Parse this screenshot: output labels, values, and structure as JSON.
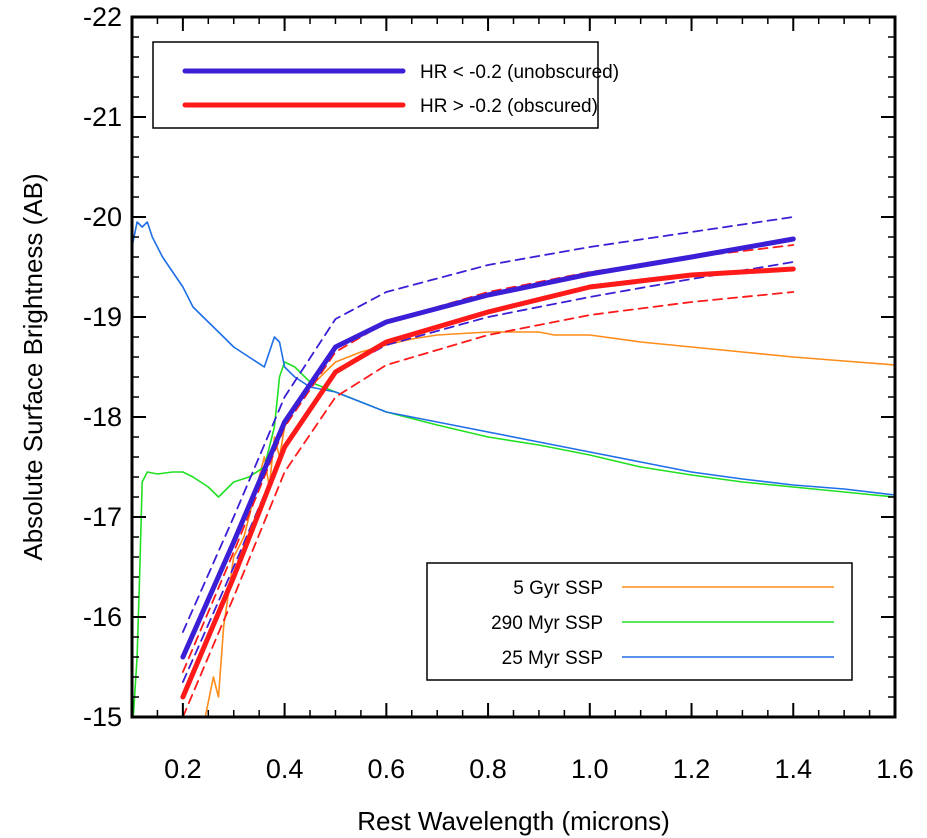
{
  "chart_data": {
    "type": "line",
    "title": "",
    "xlabel": "Rest Wavelength (microns)",
    "ylabel": "Absolute Surface Brightness (AB)",
    "xlim": [
      0.1,
      1.6
    ],
    "ylim": [
      -15,
      -22
    ],
    "y_inverted": true,
    "x_ticks": [
      "0.2",
      "0.4",
      "0.6",
      "0.8",
      "1.0",
      "1.2",
      "1.4",
      "1.6"
    ],
    "y_ticks": [
      "-15",
      "-16",
      "-17",
      "-18",
      "-19",
      "-20",
      "-21",
      "-22"
    ],
    "grid": false,
    "legends": [
      {
        "placement": "top-left",
        "entries": [
          "HR < -0.2 (unobscured)",
          "HR > -0.2 (obscured)"
        ]
      },
      {
        "placement": "bottom-right",
        "entries": [
          "5 Gyr SSP",
          "290 Myr SSP",
          "25 Myr SSP"
        ]
      }
    ],
    "series": [
      {
        "name": "HR < -0.2 (unobscured)",
        "color": "#3a1fd6",
        "style": "thick",
        "x": [
          0.2,
          0.3,
          0.4,
          0.5,
          0.6,
          0.8,
          1.0,
          1.2,
          1.4
        ],
        "y": [
          -15.6,
          -16.75,
          -17.95,
          -18.7,
          -18.95,
          -19.22,
          -19.43,
          -19.6,
          -19.78
        ]
      },
      {
        "name": "HR > -0.2 (obscured)",
        "color": "#ff1a1a",
        "style": "thick",
        "x": [
          0.2,
          0.3,
          0.4,
          0.5,
          0.6,
          0.8,
          1.0,
          1.2,
          1.4
        ],
        "y": [
          -15.2,
          -16.4,
          -17.7,
          -18.45,
          -18.75,
          -19.05,
          -19.3,
          -19.42,
          -19.48
        ]
      },
      {
        "name": "",
        "color": "#3a1fd6",
        "style": "dashed",
        "x": [
          0.2,
          0.3,
          0.4,
          0.5,
          0.6,
          0.8,
          1.0,
          1.2,
          1.4
        ],
        "y": [
          -15.85,
          -17.0,
          -18.2,
          -18.98,
          -19.25,
          -19.52,
          -19.7,
          -19.85,
          -20.0
        ]
      },
      {
        "name": "",
        "color": "#3a1fd6",
        "style": "dashed",
        "x": [
          0.2,
          0.3,
          0.4,
          0.5,
          0.6,
          0.8,
          1.0,
          1.2,
          1.4
        ],
        "y": [
          -15.35,
          -16.5,
          -17.7,
          -18.45,
          -18.72,
          -19.0,
          -19.2,
          -19.38,
          -19.55
        ]
      },
      {
        "name": "",
        "color": "#ff1a1a",
        "style": "dashed",
        "x": [
          0.2,
          0.3,
          0.4,
          0.5,
          0.6,
          0.8,
          1.0,
          1.2,
          1.4
        ],
        "y": [
          -15.45,
          -16.65,
          -17.9,
          -18.65,
          -18.95,
          -19.25,
          -19.45,
          -19.6,
          -19.72
        ]
      },
      {
        "name": "",
        "color": "#ff1a1a",
        "style": "dashed",
        "x": [
          0.2,
          0.3,
          0.4,
          0.5,
          0.6,
          0.8,
          1.0,
          1.2,
          1.4
        ],
        "y": [
          -15.0,
          -16.2,
          -17.45,
          -18.2,
          -18.52,
          -18.82,
          -19.02,
          -19.15,
          -19.25
        ]
      },
      {
        "name": "5 Gyr SSP",
        "color": "#ff8c1a",
        "style": "thin",
        "x": [
          0.24,
          0.26,
          0.27,
          0.28,
          0.3,
          0.32,
          0.34,
          0.36,
          0.37,
          0.38,
          0.39,
          0.4,
          0.42,
          0.45,
          0.5,
          0.55,
          0.6,
          0.65,
          0.7,
          0.8,
          0.9,
          0.93,
          1.0,
          1.1,
          1.2,
          1.3,
          1.4,
          1.5,
          1.6
        ],
        "y": [
          -14.9,
          -15.4,
          -15.2,
          -15.9,
          -16.6,
          -16.8,
          -17.2,
          -17.6,
          -17.3,
          -17.8,
          -17.6,
          -17.9,
          -18.1,
          -18.3,
          -18.55,
          -18.65,
          -18.72,
          -18.78,
          -18.82,
          -18.85,
          -18.85,
          -18.82,
          -18.82,
          -18.75,
          -18.7,
          -18.65,
          -18.6,
          -18.56,
          -18.52
        ]
      },
      {
        "name": "290 Myr SSP",
        "color": "#22e022",
        "style": "thin",
        "x": [
          0.1,
          0.11,
          0.115,
          0.12,
          0.13,
          0.15,
          0.18,
          0.2,
          0.22,
          0.25,
          0.27,
          0.3,
          0.33,
          0.36,
          0.38,
          0.39,
          0.4,
          0.42,
          0.45,
          0.5,
          0.55,
          0.6,
          0.7,
          0.8,
          0.9,
          1.0,
          1.1,
          1.2,
          1.3,
          1.4,
          1.5,
          1.6
        ],
        "y": [
          -14.8,
          -15.6,
          -16.4,
          -17.35,
          -17.45,
          -17.43,
          -17.45,
          -17.45,
          -17.4,
          -17.3,
          -17.2,
          -17.35,
          -17.4,
          -17.5,
          -17.9,
          -18.4,
          -18.55,
          -18.5,
          -18.35,
          -18.25,
          -18.15,
          -18.05,
          -17.92,
          -17.8,
          -17.72,
          -17.62,
          -17.5,
          -17.42,
          -17.35,
          -17.3,
          -17.25,
          -17.2
        ]
      },
      {
        "name": "25 Myr SSP",
        "color": "#1f6fe8",
        "style": "thin",
        "x": [
          0.1,
          0.11,
          0.12,
          0.13,
          0.14,
          0.16,
          0.18,
          0.2,
          0.22,
          0.25,
          0.28,
          0.3,
          0.33,
          0.36,
          0.38,
          0.39,
          0.4,
          0.42,
          0.45,
          0.5,
          0.55,
          0.6,
          0.7,
          0.8,
          0.9,
          1.0,
          1.1,
          1.2,
          1.3,
          1.4,
          1.5,
          1.6
        ],
        "y": [
          -19.7,
          -19.95,
          -19.9,
          -19.95,
          -19.8,
          -19.6,
          -19.45,
          -19.3,
          -19.1,
          -18.95,
          -18.8,
          -18.7,
          -18.6,
          -18.5,
          -18.8,
          -18.75,
          -18.5,
          -18.4,
          -18.3,
          -18.25,
          -18.15,
          -18.05,
          -17.95,
          -17.85,
          -17.75,
          -17.65,
          -17.55,
          -17.45,
          -17.38,
          -17.32,
          -17.28,
          -17.22
        ]
      }
    ]
  }
}
